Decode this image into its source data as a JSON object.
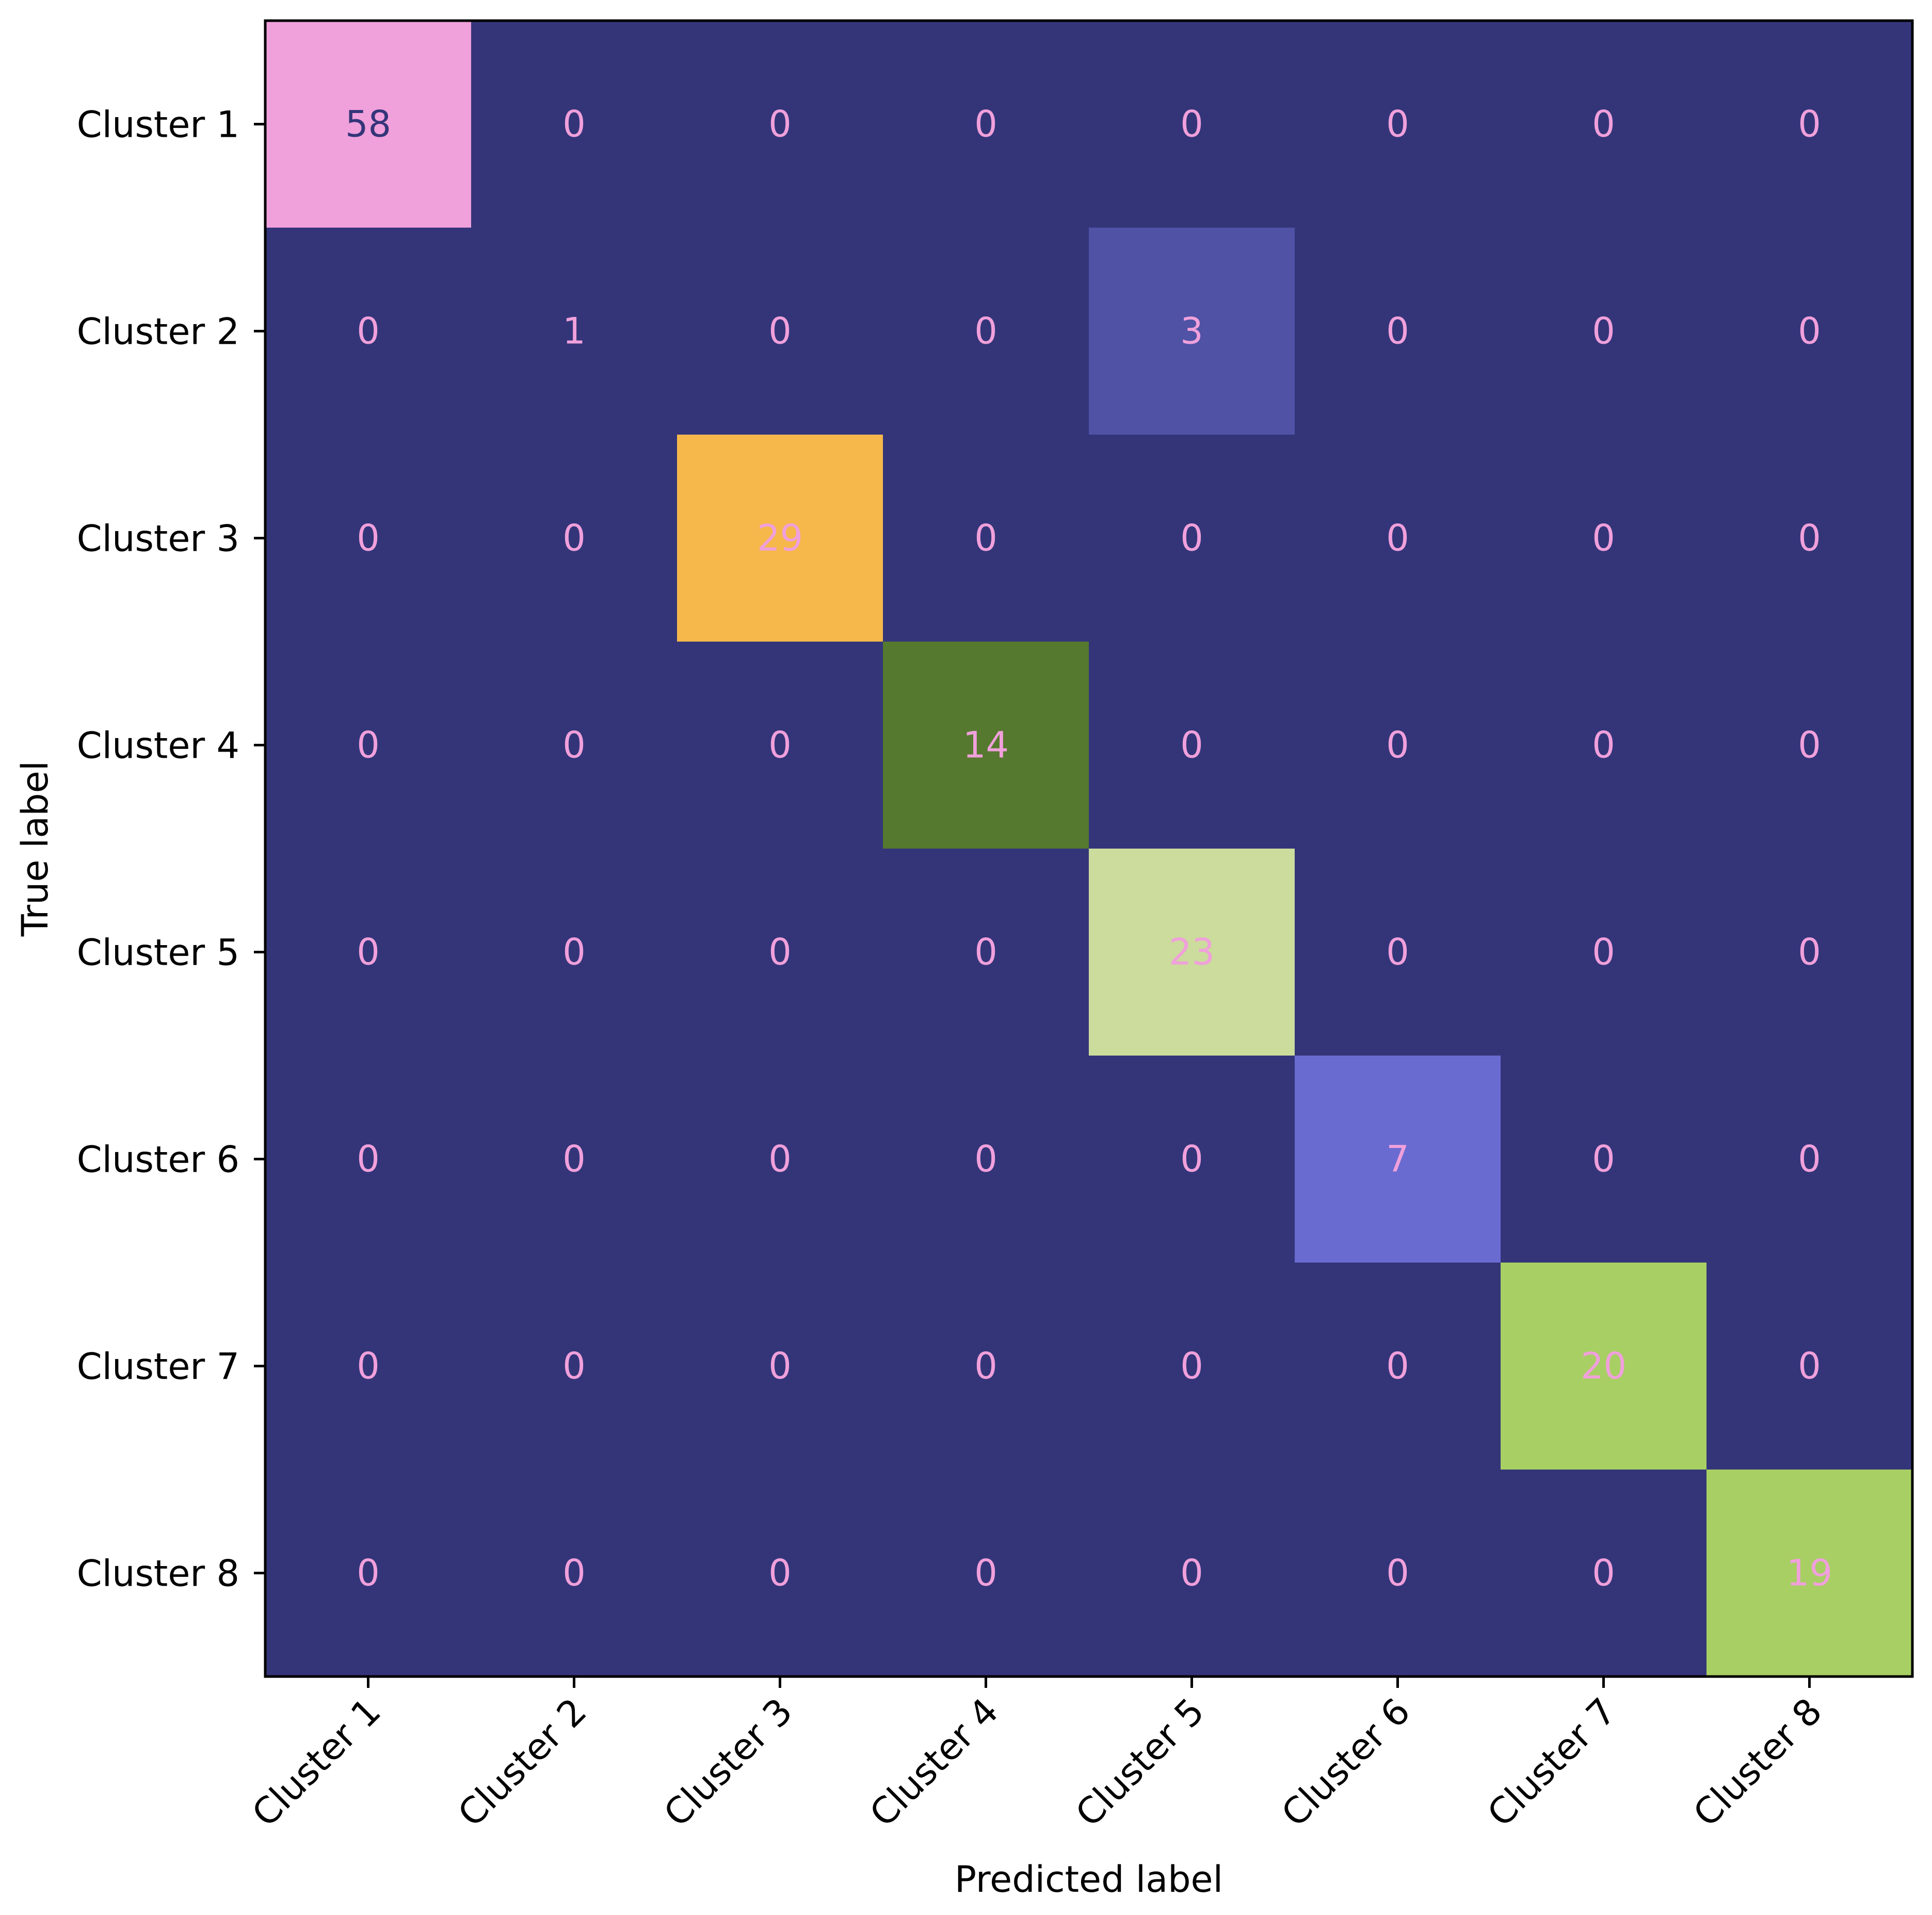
{
  "chart_data": {
    "type": "heatmap",
    "title": "",
    "xlabel": "Predicted label",
    "ylabel": "True label",
    "row_labels": [
      "Cluster 1",
      "Cluster 2",
      "Cluster 3",
      "Cluster 4",
      "Cluster 5",
      "Cluster 6",
      "Cluster 7",
      "Cluster 8"
    ],
    "col_labels": [
      "Cluster 1",
      "Cluster 2",
      "Cluster 3",
      "Cluster 4",
      "Cluster 5",
      "Cluster 6",
      "Cluster 7",
      "Cluster 8"
    ],
    "values": [
      [
        58,
        0,
        0,
        0,
        0,
        0,
        0,
        0
      ],
      [
        0,
        1,
        0,
        0,
        3,
        0,
        0,
        0
      ],
      [
        0,
        0,
        29,
        0,
        0,
        0,
        0,
        0
      ],
      [
        0,
        0,
        0,
        14,
        0,
        0,
        0,
        0
      ],
      [
        0,
        0,
        0,
        0,
        23,
        0,
        0,
        0
      ],
      [
        0,
        0,
        0,
        0,
        0,
        7,
        0,
        0
      ],
      [
        0,
        0,
        0,
        0,
        0,
        0,
        20,
        0
      ],
      [
        0,
        0,
        0,
        0,
        0,
        0,
        0,
        19
      ]
    ],
    "colorbar": false,
    "colors": {
      "background_cell": "#343579",
      "58": "#f0a0db",
      "29": "#f6b84b",
      "23": "#cbdc9c",
      "20": "#a8cf63",
      "19": "#a8cf63",
      "14": "#55792e",
      "7": "#6a6bd1",
      "3": "#4f52a5",
      "1": "#343579"
    },
    "text_colors": {
      "light": "#f0a0db",
      "dark": "#343579"
    }
  }
}
